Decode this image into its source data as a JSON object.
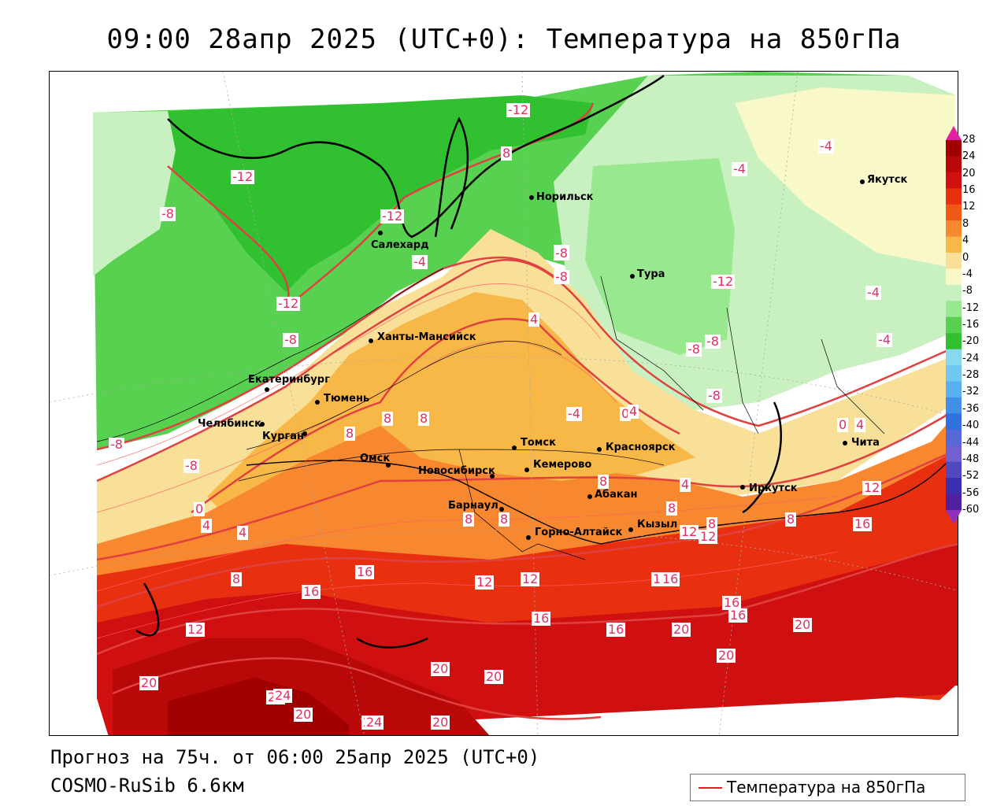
{
  "title": "09:00 28апр 2025 (UTC+0): Температура на 850гПа",
  "forecast_line": "Прогноз на 75ч. от 06:00 25апр 2025 (UTC+0)",
  "model_line": "COSMO-RuSib 6.6км",
  "legend": {
    "label": "Температура на 850гПа",
    "line_color": "#e02020"
  },
  "colorbar": {
    "labels": [
      "28",
      "24",
      "20",
      "16",
      "12",
      "8",
      "4",
      "0",
      "-4",
      "-8",
      "-12",
      "-16",
      "-20",
      "-24",
      "-28",
      "-32",
      "-36",
      "-40",
      "-44",
      "-48",
      "-52",
      "-56",
      "-60"
    ],
    "colors": [
      "#a00000",
      "#b80808",
      "#d01010",
      "#e83010",
      "#f05818",
      "#f88830",
      "#f8b848",
      "#f8e098",
      "#f8f8c8",
      "#c8f0c0",
      "#98e890",
      "#58d050",
      "#30c030",
      "#88d8f0",
      "#70c8f0",
      "#58b0f0",
      "#4090e8",
      "#3070e0",
      "#5868d8",
      "#7060d0",
      "#5048c0",
      "#3830b0",
      "#5020a0"
    ],
    "arrow_top_color": "#e020a0",
    "arrow_bottom_color": "#9030c0"
  },
  "cities": [
    {
      "name": "Салехард"
    },
    {
      "name": "Норильск"
    },
    {
      "name": "Якутск"
    },
    {
      "name": "Тура"
    },
    {
      "name": "Ханты-Мансийск"
    },
    {
      "name": "Екатеринбург"
    },
    {
      "name": "Тюмень"
    },
    {
      "name": "Челябинск"
    },
    {
      "name": "Курган"
    },
    {
      "name": "Омск"
    },
    {
      "name": "Новосибирск"
    },
    {
      "name": "Томск"
    },
    {
      "name": "Кемерово"
    },
    {
      "name": "Красноярск"
    },
    {
      "name": "Абакан"
    },
    {
      "name": "Барнаул"
    },
    {
      "name": "Горно-Алтайск"
    },
    {
      "name": "Кызыл"
    },
    {
      "name": "Иркутск"
    },
    {
      "name": "Чита"
    }
  ],
  "contour_labels": [
    "-12",
    "-12",
    "-12",
    "-8",
    "-12",
    "-8",
    "-8",
    "-8",
    "-8",
    "-8",
    "-4",
    "-4",
    "-4",
    "-4",
    "-4",
    "-4",
    "-8",
    "-8",
    "-8",
    "-8",
    "-12",
    "0",
    "4",
    "4",
    "4",
    "8",
    "8",
    "8",
    "8",
    "8",
    "8",
    "8",
    "8",
    "0",
    "4",
    "0",
    "4",
    "4",
    "8",
    "8",
    "8",
    "12",
    "12",
    "12",
    "12",
    "12",
    "12",
    "16",
    "16",
    "16",
    "16",
    "16",
    "16",
    "16",
    "16",
    "16",
    "20",
    "20",
    "20",
    "20",
    "20",
    "20",
    "20",
    "20",
    "20",
    "20",
    "24",
    "24"
  ]
}
